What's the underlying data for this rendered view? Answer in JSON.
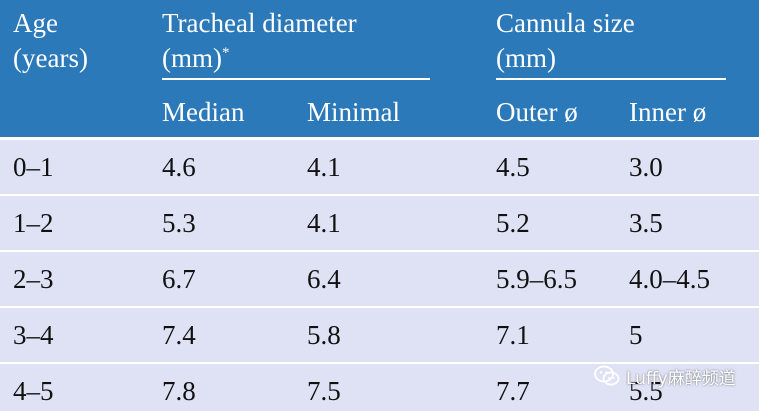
{
  "header": {
    "age_line1": "Age",
    "age_line2": "(years)",
    "tracheal_line1": "Tracheal diameter",
    "tracheal_line2": "(mm)",
    "tracheal_footnote": "*",
    "cannula_line1": "Cannula size",
    "cannula_line2": "(mm)",
    "sub_median": "Median",
    "sub_minimal": "Minimal",
    "sub_outer": "Outer ø",
    "sub_inner": "Inner ø"
  },
  "rows": [
    [
      "0–1",
      "4.6",
      "4.1",
      "4.5",
      "3.0"
    ],
    [
      "1–2",
      "5.3",
      "4.1",
      "5.2",
      "3.5"
    ],
    [
      "2–3",
      "6.7",
      "6.4",
      "5.9–6.5",
      "4.0–4.5"
    ],
    [
      "3–4",
      "7.4",
      "5.8",
      "7.1",
      "5"
    ],
    [
      "4–5",
      "7.8",
      "7.5",
      "7.7",
      "5.5"
    ]
  ],
  "colors": {
    "header_bg": "#2b79b8",
    "row_bg": "#dfe2f4"
  },
  "watermark": {
    "icon": "wechat-icon",
    "text": "Luffy麻醉频道"
  }
}
